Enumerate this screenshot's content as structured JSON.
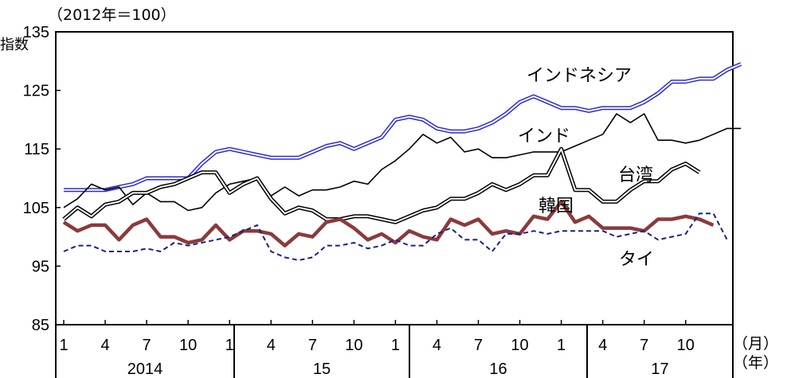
{
  "chart_data": {
    "type": "line",
    "unit_label": "（2012年＝100）",
    "x_unit_month": "（月）",
    "x_unit_year": "（年）",
    "ylim": [
      85,
      135
    ],
    "yticks": [
      85,
      95,
      105,
      115,
      125,
      135
    ],
    "month_ticks": [
      "1",
      "4",
      "7",
      "10"
    ],
    "years": [
      "2014",
      "15",
      "16",
      "17"
    ],
    "legend": "none",
    "grid": false,
    "series": [
      {
        "name": "インドネシア",
        "color": "#2b2bd6",
        "style": "double",
        "values": [
          108,
          108,
          108,
          108,
          108.5,
          109,
          110,
          110,
          110,
          110,
          112.5,
          114.5,
          115,
          114.5,
          114,
          113.5,
          113.5,
          113.5,
          114.5,
          115.5,
          116,
          115,
          116,
          117,
          120,
          120.5,
          120,
          118.5,
          118,
          118,
          118.5,
          119.5,
          121,
          123,
          124,
          123,
          122,
          122,
          121.5,
          122,
          122,
          122,
          123,
          124.5,
          126.5,
          126.5,
          127,
          127,
          128.5,
          129.5
        ]
      },
      {
        "name": "インド",
        "color": "#000000",
        "style": "single",
        "values": [
          105,
          106.5,
          109,
          108,
          108.5,
          105.5,
          107.5,
          106,
          106,
          104.5,
          105,
          107.5,
          109,
          109.5,
          110,
          107,
          108.5,
          107,
          108,
          108,
          108.5,
          109.5,
          109,
          111.5,
          113,
          115,
          117.5,
          116,
          117,
          114.5,
          115,
          113.5,
          113.5,
          114,
          114.5,
          114.5,
          114.5,
          115.5,
          116.5,
          117.5,
          121,
          119.5,
          121,
          116.5,
          116.5,
          116,
          116.5,
          117.5,
          118.5,
          118.5
        ]
      },
      {
        "name": "台湾",
        "color": "#000000",
        "style": "double",
        "values": [
          103,
          105,
          103.5,
          105.5,
          106,
          107.5,
          107.5,
          108.5,
          109,
          110,
          111,
          111,
          107.5,
          109,
          110,
          106.5,
          104,
          105,
          104.5,
          103,
          103,
          103.5,
          103.5,
          103,
          102.5,
          103.5,
          104.5,
          105,
          106.5,
          106.5,
          107.5,
          109,
          108,
          109,
          110.5,
          110.5,
          115,
          108,
          108,
          106,
          106,
          108,
          109.5,
          109.5,
          111.5,
          112.5,
          111
        ]
      },
      {
        "name": "韓国",
        "color": "#8b3a3a",
        "style": "thick",
        "values": [
          102.5,
          101,
          102,
          102,
          99.5,
          102,
          103,
          100,
          100,
          99,
          99.5,
          102,
          99.5,
          101,
          101,
          100.5,
          98.5,
          100.5,
          100,
          102.5,
          103,
          101.5,
          99.5,
          100.5,
          99,
          101,
          100,
          99.5,
          103,
          102,
          103,
          100.5,
          101,
          100.5,
          103.5,
          103,
          106,
          102.5,
          103.5,
          101.5,
          101.5,
          101.5,
          101,
          103,
          103,
          103.5,
          103,
          102
        ]
      },
      {
        "name": "タイ",
        "color": "#1a237e",
        "style": "dashed",
        "values": [
          97.5,
          98.5,
          98.5,
          97.5,
          97.5,
          97.5,
          98,
          97.5,
          99,
          98.5,
          99,
          99.5,
          100,
          101,
          102,
          97.5,
          96.5,
          96,
          96.5,
          98.5,
          98.5,
          99,
          98,
          98.5,
          99.5,
          98.5,
          98.5,
          100.5,
          101.5,
          99.5,
          99.5,
          97.5,
          100.5,
          100.5,
          101,
          100.5,
          101,
          101,
          101,
          101,
          100,
          100.5,
          101,
          99.5,
          100,
          100.5,
          104,
          104,
          99.5
        ]
      }
    ],
    "annotations": [
      "インドネシア",
      "インド",
      "台湾",
      "韓国",
      "タイ"
    ],
    "axis_mark": "指数"
  }
}
